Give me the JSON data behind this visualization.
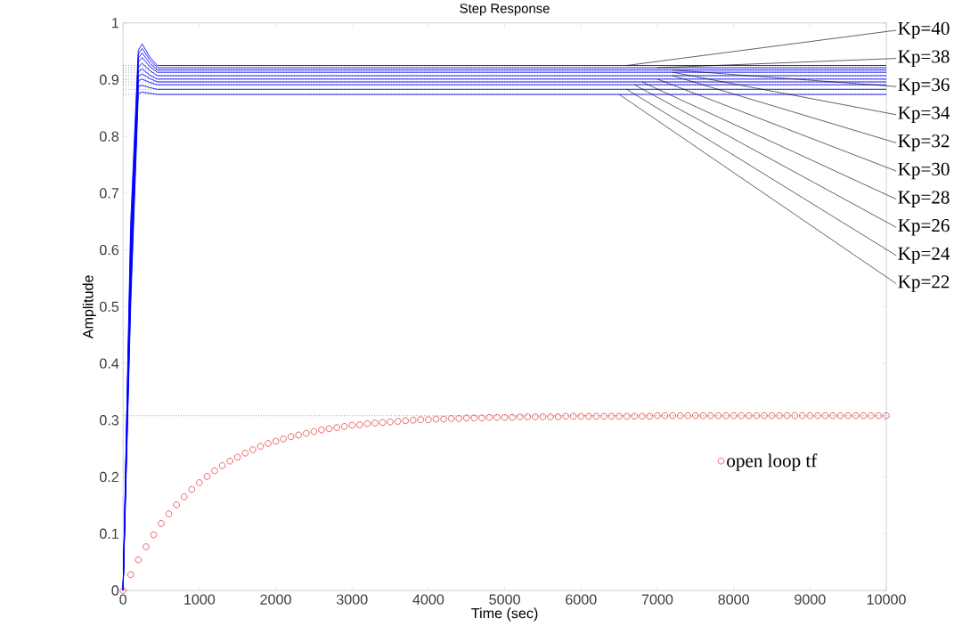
{
  "chart_data": {
    "type": "line",
    "title": "Step Response",
    "xlabel": "Time (sec)",
    "ylabel": "Amplitude",
    "xlim": [
      0,
      10000
    ],
    "ylim": [
      0,
      1
    ],
    "xticks": [
      0,
      1000,
      2000,
      3000,
      4000,
      5000,
      6000,
      7000,
      8000,
      9000,
      10000
    ],
    "yticks": [
      0,
      0.1,
      0.2,
      0.3,
      0.4,
      0.5,
      0.6,
      0.7,
      0.8,
      0.9,
      1
    ],
    "legend": "right",
    "series": [
      {
        "color": "#0000ff",
        "x": [
          0,
          100,
          200,
          250,
          350,
          450,
          600,
          10000
        ],
        "values": [
          0,
          0.65,
          0.952,
          0.963,
          0.94,
          0.925,
          0.925,
          0.925
        ]
      },
      {
        "color": "#0000ff",
        "x": [
          0,
          100,
          200,
          250,
          350,
          450,
          600,
          10000
        ],
        "values": [
          0,
          0.63,
          0.945,
          0.955,
          0.935,
          0.921,
          0.921,
          0.921
        ]
      },
      {
        "color": "#0000ff",
        "x": [
          0,
          100,
          200,
          250,
          350,
          450,
          600,
          10000
        ],
        "values": [
          0,
          0.61,
          0.938,
          0.947,
          0.929,
          0.917,
          0.917,
          0.917
        ]
      },
      {
        "color": "#0000ff",
        "x": [
          0,
          100,
          200,
          250,
          350,
          450,
          600,
          10000
        ],
        "values": [
          0,
          0.6,
          0.931,
          0.939,
          0.923,
          0.913,
          0.913,
          0.913
        ]
      },
      {
        "color": "#0000ff",
        "x": [
          0,
          100,
          200,
          250,
          350,
          450,
          600,
          10000
        ],
        "values": [
          0,
          0.58,
          0.922,
          0.929,
          0.916,
          0.907,
          0.907,
          0.907
        ]
      },
      {
        "color": "#0000ff",
        "x": [
          0,
          100,
          200,
          250,
          350,
          450,
          600,
          10000
        ],
        "values": [
          0,
          0.56,
          0.914,
          0.919,
          0.908,
          0.901,
          0.901,
          0.901
        ]
      },
      {
        "color": "#0000ff",
        "x": [
          0,
          100,
          200,
          250,
          350,
          450,
          600,
          10000
        ],
        "values": [
          0,
          0.55,
          0.906,
          0.91,
          0.902,
          0.896,
          0.896,
          0.896
        ]
      },
      {
        "color": "#0000ff",
        "x": [
          0,
          100,
          200,
          250,
          350,
          450,
          600,
          10000
        ],
        "values": [
          0,
          0.53,
          0.898,
          0.901,
          0.895,
          0.891,
          0.891,
          0.891
        ]
      },
      {
        "color": "#0000ff",
        "x": [
          0,
          100,
          200,
          250,
          350,
          450,
          600,
          10000
        ],
        "values": [
          0,
          0.52,
          0.888,
          0.89,
          0.886,
          0.883,
          0.883,
          0.883
        ]
      },
      {
        "color": "#0000ff",
        "x": [
          0,
          100,
          200,
          250,
          350,
          450,
          600,
          10000
        ],
        "values": [
          0,
          0.5,
          0.876,
          0.878,
          0.876,
          0.874,
          0.874,
          0.874
        ]
      },
      {
        "name": "open loop tf",
        "type": "scatter",
        "marker": "circle",
        "color": "#e03030",
        "x": [
          0,
          100,
          200,
          300,
          400,
          500,
          600,
          700,
          800,
          900,
          1000,
          1100,
          1200,
          1300,
          1400,
          1500,
          1600,
          1700,
          1800,
          1900,
          2000,
          2100,
          2200,
          2300,
          2400,
          2500,
          2600,
          2700,
          2800,
          2900,
          3000,
          3100,
          3200,
          3300,
          3400,
          3500,
          3600,
          3700,
          3800,
          3900,
          4000,
          4100,
          4200,
          4300,
          4400,
          4500,
          4600,
          4700,
          4800,
          4900,
          5000,
          5100,
          5200,
          5300,
          5400,
          5500,
          5600,
          5700,
          5800,
          5900,
          6000,
          6100,
          6200,
          6300,
          6400,
          6500,
          6600,
          6700,
          6800,
          6900,
          7000,
          7100,
          7200,
          7300,
          7400,
          7500,
          7600,
          7700,
          7800,
          7900,
          8000,
          8100,
          8200,
          8300,
          8400,
          8500,
          8600,
          8700,
          8800,
          8900,
          9000,
          9100,
          9200,
          9300,
          9400,
          9500,
          9600,
          9700,
          9800,
          9900,
          10000
        ],
        "values": [
          0,
          0.028,
          0.054,
          0.077,
          0.098,
          0.118,
          0.135,
          0.151,
          0.165,
          0.178,
          0.19,
          0.201,
          0.211,
          0.22,
          0.228,
          0.235,
          0.242,
          0.248,
          0.254,
          0.259,
          0.263,
          0.267,
          0.271,
          0.274,
          0.277,
          0.28,
          0.283,
          0.285,
          0.287,
          0.289,
          0.291,
          0.292,
          0.294,
          0.295,
          0.296,
          0.297,
          0.298,
          0.299,
          0.3,
          0.301,
          0.301,
          0.302,
          0.302,
          0.303,
          0.303,
          0.304,
          0.304,
          0.304,
          0.305,
          0.305,
          0.305,
          0.305,
          0.306,
          0.306,
          0.306,
          0.306,
          0.306,
          0.306,
          0.307,
          0.307,
          0.307,
          0.307,
          0.307,
          0.307,
          0.307,
          0.307,
          0.307,
          0.307,
          0.307,
          0.307,
          0.308,
          0.308,
          0.308,
          0.308,
          0.308,
          0.308,
          0.308,
          0.308,
          0.308,
          0.308,
          0.308,
          0.308,
          0.308,
          0.308,
          0.308,
          0.308,
          0.308,
          0.308,
          0.308,
          0.308,
          0.308,
          0.308,
          0.308,
          0.308,
          0.308,
          0.308,
          0.308,
          0.308,
          0.308,
          0.308,
          0.308
        ]
      }
    ],
    "ref_lines": [
      {
        "axis": "y",
        "value": 0.925,
        "color": "#000000",
        "line_style": "dotted"
      },
      {
        "axis": "y",
        "value": 0.921,
        "color": "#000000",
        "line_style": "dotted"
      },
      {
        "axis": "y",
        "value": 0.917,
        "color": "#000000",
        "line_style": "dotted"
      },
      {
        "axis": "y",
        "value": 0.913,
        "color": "#000000",
        "line_style": "dotted"
      },
      {
        "axis": "y",
        "value": 0.907,
        "color": "#000000",
        "line_style": "dotted"
      },
      {
        "axis": "y",
        "value": 0.901,
        "color": "#000000",
        "line_style": "dotted"
      },
      {
        "axis": "y",
        "value": 0.896,
        "color": "#000000",
        "line_style": "dotted"
      },
      {
        "axis": "y",
        "value": 0.891,
        "color": "#000000",
        "line_style": "dotted"
      },
      {
        "axis": "y",
        "value": 0.883,
        "color": "#000000",
        "line_style": "dotted"
      },
      {
        "axis": "y",
        "value": 0.874,
        "color": "#000000",
        "line_style": "dotted"
      },
      {
        "axis": "y",
        "value": 0.308,
        "color": "#000000",
        "line_style": "dotted"
      }
    ],
    "annotations": [
      {
        "text": "Kp=40",
        "x": 6600,
        "y": 0.925
      },
      {
        "text": "Kp=38",
        "x": 7000,
        "y": 0.921
      },
      {
        "text": "Kp=36",
        "x": 7200,
        "y": 0.917
      },
      {
        "text": "Kp=34",
        "x": 7200,
        "y": 0.913
      },
      {
        "text": "Kp=32",
        "x": 7200,
        "y": 0.907
      },
      {
        "text": "Kp=30",
        "x": 7000,
        "y": 0.901
      },
      {
        "text": "Kp=28",
        "x": 6800,
        "y": 0.896
      },
      {
        "text": "Kp=26",
        "x": 6700,
        "y": 0.891
      },
      {
        "text": "Kp=24",
        "x": 6600,
        "y": 0.883
      },
      {
        "text": "Kp=22",
        "x": 6500,
        "y": 0.874
      }
    ]
  }
}
